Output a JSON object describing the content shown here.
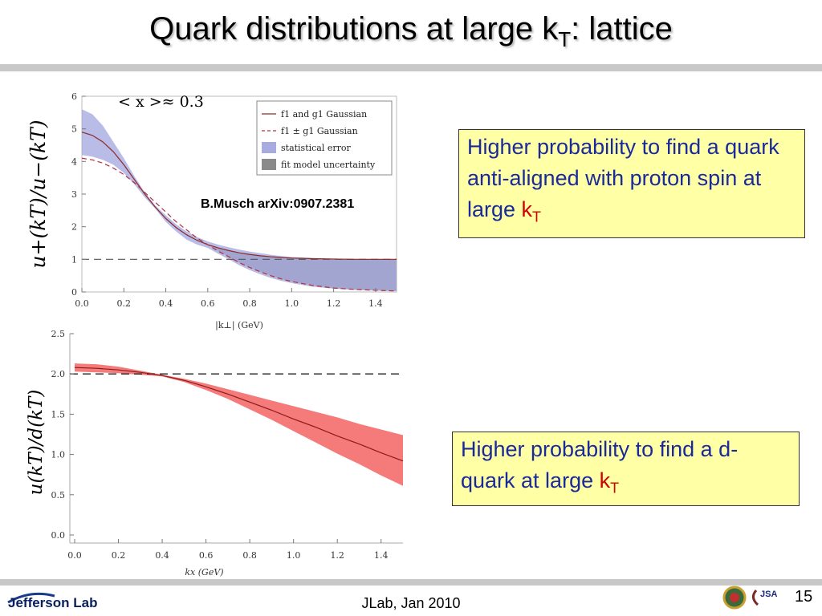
{
  "slide": {
    "title_main": "Quark distributions at large k",
    "title_sub": "T",
    "title_tail": ":  lattice",
    "footer": "JLab, Jan 2010",
    "page_number": "15",
    "logo_text": "Jefferson Lab",
    "jsa_text": "JSA",
    "reference": "B.Musch arXiv:0907.2381",
    "x_note": "< x >≈ 0.3"
  },
  "callouts": [
    {
      "text": "Higher probability to find a quark anti-aligned with proton spin  at large ",
      "kt": "k",
      "kt_sub": "T"
    },
    {
      "text": "Higher probability to find a d-quark at large ",
      "kt": "k",
      "kt_sub": "T"
    }
  ],
  "chart_data": [
    {
      "type": "line",
      "ylabel": "u+(kT)/u−(kT)",
      "xlabel": "|k⊥| (GeV)",
      "xlim": [
        0.0,
        1.5
      ],
      "ylim": [
        0,
        6
      ],
      "x_ticks": [
        "0.0",
        "0.2",
        "0.4",
        "0.6",
        "0.8",
        "1.0",
        "1.2",
        "1.4"
      ],
      "y_ticks": [
        "0",
        "1",
        "2",
        "3",
        "4",
        "5",
        "6"
      ],
      "legend": [
        {
          "label": "f1 and g1 Gaussian",
          "style": "solid",
          "color": "#8b2a2a"
        },
        {
          "label": "f1 ± g1 Gaussian",
          "style": "dashed",
          "color": "#b03040"
        },
        {
          "label": "statistical error",
          "style": "band",
          "color": "#a7abe0"
        },
        {
          "label": "fit model uncertainty",
          "style": "band",
          "color": "#8a8a8a"
        }
      ],
      "legend_position": "top-right",
      "x": [
        0.0,
        0.05,
        0.1,
        0.15,
        0.2,
        0.25,
        0.3,
        0.35,
        0.4,
        0.45,
        0.5,
        0.55,
        0.6,
        0.65,
        0.7,
        0.75,
        0.8,
        0.85,
        0.9,
        0.95,
        1.0,
        1.1,
        1.2,
        1.3,
        1.4,
        1.5
      ],
      "series": [
        {
          "name": "f1 and g1 Gaussian",
          "values": [
            4.9,
            4.8,
            4.6,
            4.3,
            3.9,
            3.45,
            3.0,
            2.6,
            2.25,
            1.97,
            1.75,
            1.58,
            1.45,
            1.35,
            1.27,
            1.2,
            1.15,
            1.11,
            1.08,
            1.06,
            1.04,
            1.02,
            1.01,
            1.0,
            1.0,
            1.0
          ]
        },
        {
          "name": "f1 ± g1 Gaussian",
          "values": [
            4.1,
            4.05,
            3.95,
            3.8,
            3.6,
            3.35,
            3.05,
            2.75,
            2.45,
            2.15,
            1.9,
            1.65,
            1.45,
            1.25,
            1.08,
            0.9,
            0.75,
            0.62,
            0.5,
            0.4,
            0.32,
            0.2,
            0.12,
            0.08,
            0.05,
            0.03
          ]
        },
        {
          "name": "statistical error upper",
          "values": [
            5.6,
            5.45,
            5.1,
            4.6,
            4.1,
            3.55,
            3.05,
            2.65,
            2.35,
            2.07,
            1.85,
            1.68,
            1.55,
            1.45,
            1.37,
            1.3,
            1.24,
            1.19,
            1.14,
            1.1,
            1.07,
            1.04,
            1.02,
            1.01,
            1.0,
            1.0
          ]
        },
        {
          "name": "statistical error lower",
          "values": [
            4.2,
            4.15,
            4.05,
            3.9,
            3.65,
            3.3,
            2.9,
            2.55,
            2.15,
            1.85,
            1.6,
            1.45,
            1.35,
            1.17,
            1.0,
            0.82,
            0.67,
            0.54,
            0.43,
            0.34,
            0.27,
            0.16,
            0.1,
            0.06,
            0.04,
            0.02
          ]
        }
      ],
      "reference_line": 1
    },
    {
      "type": "line",
      "ylabel": "u(kT)/d(kT)",
      "xlabel": "kx (GeV)",
      "xlim": [
        0.0,
        1.5
      ],
      "ylim": [
        0.0,
        2.5
      ],
      "x_ticks": [
        "0.0",
        "0.2",
        "0.4",
        "0.6",
        "0.8",
        "1.0",
        "1.2",
        "1.4"
      ],
      "y_ticks": [
        "0.0",
        "0.5",
        "1.0",
        "1.5",
        "2.0",
        "2.5"
      ],
      "x": [
        0.0,
        0.1,
        0.2,
        0.3,
        0.4,
        0.5,
        0.6,
        0.7,
        0.8,
        0.9,
        1.0,
        1.1,
        1.2,
        1.3,
        1.4,
        1.5
      ],
      "series": [
        {
          "name": "central",
          "values": [
            2.08,
            2.07,
            2.05,
            2.02,
            1.98,
            1.92,
            1.84,
            1.75,
            1.65,
            1.55,
            1.44,
            1.34,
            1.23,
            1.13,
            1.02,
            0.92
          ]
        },
        {
          "name": "upper",
          "values": [
            2.13,
            2.12,
            2.09,
            2.04,
            1.99,
            1.94,
            1.88,
            1.81,
            1.74,
            1.67,
            1.6,
            1.53,
            1.46,
            1.38,
            1.31,
            1.24
          ]
        },
        {
          "name": "lower",
          "values": [
            2.03,
            2.02,
            2.01,
            1.99,
            1.97,
            1.9,
            1.8,
            1.69,
            1.56,
            1.43,
            1.29,
            1.15,
            1.01,
            0.88,
            0.74,
            0.61
          ]
        }
      ],
      "reference_line": 2.0
    }
  ]
}
